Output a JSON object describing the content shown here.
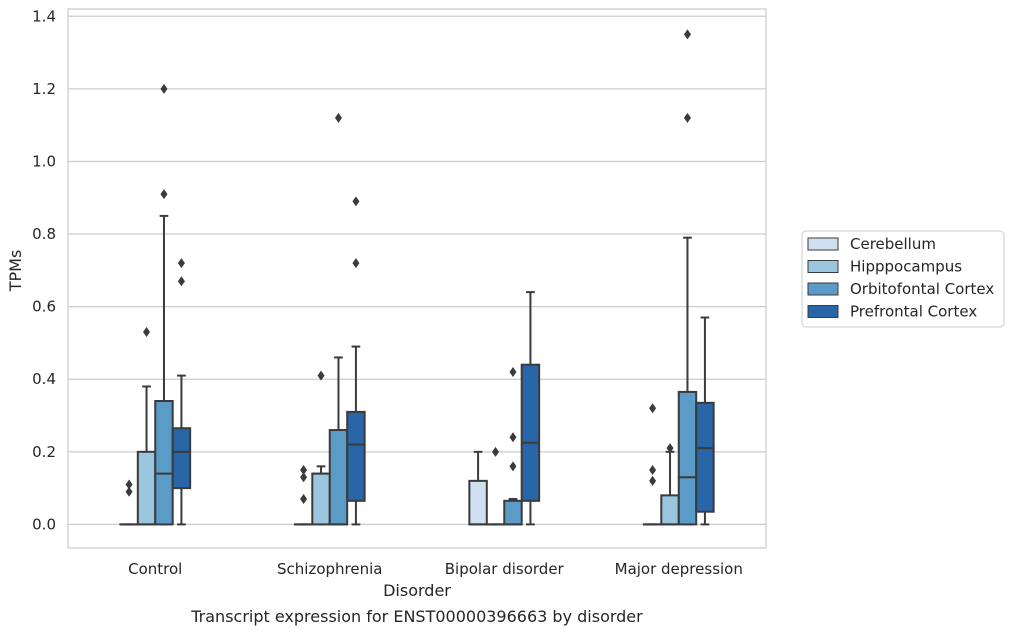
{
  "chart_data": {
    "type": "box",
    "title": "",
    "caption": "Transcript expression for ENST00000396663 by disorder",
    "xlabel": "Disorder",
    "ylabel": "TPMs",
    "ylim": [
      -0.065,
      1.42
    ],
    "yticks": [
      "0.0",
      "0.2",
      "0.4",
      "0.6",
      "0.8",
      "1.0",
      "1.2",
      "1.4"
    ],
    "grid": "horizontal",
    "legend_position": "right",
    "categories": [
      "Control",
      "Schizophrenia",
      "Bipolar disorder",
      "Major depression"
    ],
    "series": [
      {
        "name": "Cerebellum",
        "color": "#d0e0f0",
        "boxes": [
          {
            "q1": 0,
            "median": 0,
            "q3": 0,
            "whisker_low": 0,
            "whisker_high": 0,
            "outliers": [
              0.09,
              0.11
            ]
          },
          {
            "q1": 0,
            "median": 0,
            "q3": 0,
            "whisker_low": 0,
            "whisker_high": 0,
            "outliers": [
              0.07,
              0.13,
              0.15
            ]
          },
          {
            "q1": 0,
            "median": 0,
            "q3": 0.12,
            "whisker_low": 0,
            "whisker_high": 0.2,
            "outliers": []
          },
          {
            "q1": 0,
            "median": 0,
            "q3": 0,
            "whisker_low": 0,
            "whisker_high": 0,
            "outliers": [
              0.12,
              0.15,
              0.32
            ]
          }
        ]
      },
      {
        "name": "Hipppocampus",
        "color": "#9ac6df",
        "boxes": [
          {
            "q1": 0,
            "median": 0,
            "q3": 0.2,
            "whisker_low": 0,
            "whisker_high": 0.38,
            "outliers": [
              0.53
            ]
          },
          {
            "q1": 0,
            "median": 0.14,
            "q3": 0.14,
            "whisker_low": 0,
            "whisker_high": 0.16,
            "outliers": [
              0.41
            ]
          },
          {
            "q1": 0,
            "median": 0,
            "q3": 0,
            "whisker_low": 0,
            "whisker_high": 0,
            "outliers": [
              0.2
            ]
          },
          {
            "q1": 0,
            "median": 0,
            "q3": 0.08,
            "whisker_low": 0,
            "whisker_high": 0.2,
            "outliers": [
              0.21
            ]
          }
        ]
      },
      {
        "name": "Orbitofontal Cortex",
        "color": "#5a9bc8",
        "boxes": [
          {
            "q1": 0,
            "median": 0.14,
            "q3": 0.34,
            "whisker_low": 0,
            "whisker_high": 0.85,
            "outliers": [
              0.91,
              1.2
            ]
          },
          {
            "q1": 0,
            "median": 0,
            "q3": 0.26,
            "whisker_low": 0,
            "whisker_high": 0.46,
            "outliers": [
              1.12
            ]
          },
          {
            "q1": 0,
            "median": 0,
            "q3": 0.065,
            "whisker_low": 0,
            "whisker_high": 0.07,
            "outliers": [
              0.16,
              0.24,
              0.42
            ]
          },
          {
            "q1": 0,
            "median": 0.13,
            "q3": 0.365,
            "whisker_low": 0,
            "whisker_high": 0.79,
            "outliers": [
              1.12,
              1.35
            ]
          }
        ]
      },
      {
        "name": "Prefrontal Cortex",
        "color": "#2866a8",
        "boxes": [
          {
            "q1": 0.1,
            "median": 0.2,
            "q3": 0.265,
            "whisker_low": 0,
            "whisker_high": 0.41,
            "outliers": [
              0.67,
              0.72
            ]
          },
          {
            "q1": 0.065,
            "median": 0.22,
            "q3": 0.31,
            "whisker_low": 0,
            "whisker_high": 0.49,
            "outliers": [
              0.72,
              0.89
            ]
          },
          {
            "q1": 0.065,
            "median": 0.225,
            "q3": 0.44,
            "whisker_low": 0,
            "whisker_high": 0.64,
            "outliers": []
          },
          {
            "q1": 0.035,
            "median": 0.21,
            "q3": 0.335,
            "whisker_low": 0,
            "whisker_high": 0.57,
            "outliers": []
          }
        ]
      }
    ]
  }
}
